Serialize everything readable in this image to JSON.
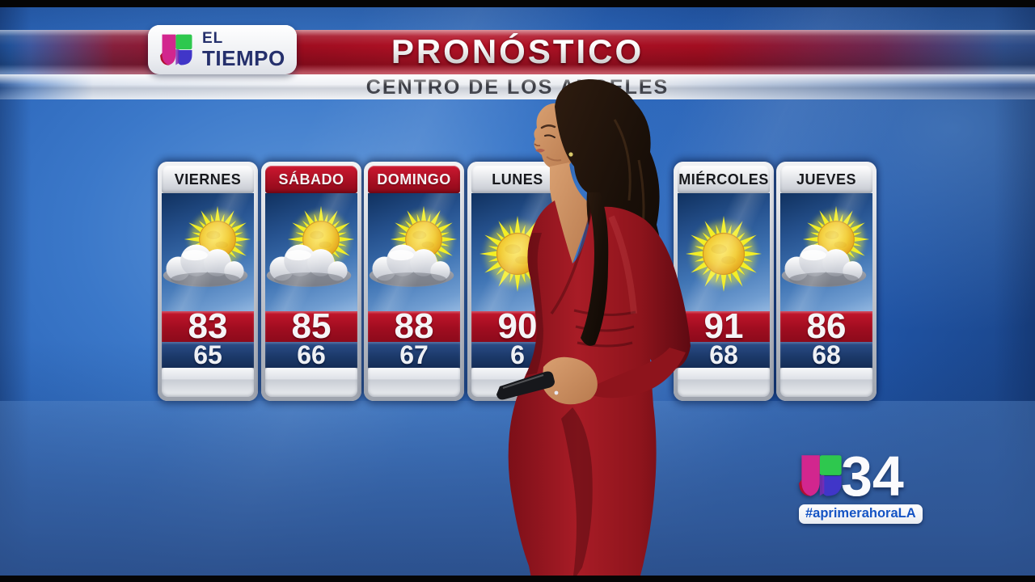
{
  "header": {
    "brand": {
      "line1": "EL",
      "line2": "TIEMPO"
    },
    "title": "PRONÓSTICO",
    "subtitle": "CENTRO DE LOS ANGELES"
  },
  "forecast": {
    "days": [
      {
        "day": "VIERNES",
        "high": "83",
        "low": "65",
        "icon": "partly-cloudy",
        "header": "silver"
      },
      {
        "day": "SÁBADO",
        "high": "85",
        "low": "66",
        "icon": "partly-cloudy",
        "header": "red"
      },
      {
        "day": "DOMINGO",
        "high": "88",
        "low": "67",
        "icon": "partly-cloudy",
        "header": "red"
      },
      {
        "day": "LUNES",
        "high": "90",
        "low": "6",
        "icon": "sunny",
        "header": "silver"
      },
      {
        "day": "MIÉRCOLES",
        "high": "91",
        "low": "68",
        "icon": "sunny",
        "header": "silver"
      },
      {
        "day": "JUEVES",
        "high": "86",
        "low": "68",
        "icon": "partly-cloudy",
        "header": "silver"
      }
    ]
  },
  "station": {
    "channel": "34",
    "hashtag": "#aprimerahoraLA"
  },
  "icons": {
    "sun": "sun-icon",
    "partly_cloudy": "sun-behind-cloud-icon",
    "brand": "univision-u-icon"
  },
  "colors": {
    "banner_red": "#B31226",
    "high_band_red": "#A00D20",
    "low_band_navy": "#1B3868",
    "weekend_header_red": "#9C0C1E",
    "background_blue": "#2A64B8",
    "logo_green": "#2EC84E",
    "logo_magenta": "#D2268E",
    "logo_blue": "#4036C8",
    "logo_red": "#B01030",
    "hashtag_blue": "#1453C4",
    "dress_red": "#8E141C"
  }
}
